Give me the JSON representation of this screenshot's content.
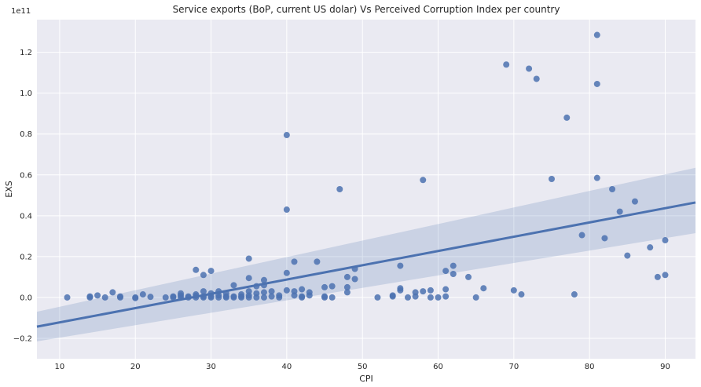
{
  "chart_data": {
    "type": "scatter",
    "title": "Service exports (BoP, current US dolar) Vs Perceived Corruption Index per country",
    "xlabel": "CPI",
    "ylabel": "EXS",
    "offset_label": "1e11",
    "xlim": [
      7,
      94
    ],
    "ylim": [
      -0.3,
      1.36
    ],
    "y_scale_factor": 100000000000,
    "x_ticks": [
      10,
      20,
      30,
      40,
      50,
      60,
      70,
      80,
      90
    ],
    "y_ticks": [
      -0.2,
      0.0,
      0.2,
      0.4,
      0.6,
      0.8,
      1.0,
      1.2
    ],
    "x_tick_labels": [
      "10",
      "20",
      "30",
      "40",
      "50",
      "60",
      "70",
      "80",
      "90"
    ],
    "y_tick_labels": [
      "−0.2",
      "0.0",
      "0.2",
      "0.4",
      "0.6",
      "0.8",
      "1.0",
      "1.2"
    ],
    "grid": true,
    "colors": {
      "background": "#eaeaf2",
      "grid": "#ffffff",
      "points": "#4c72b0",
      "band": "#4c72b0"
    },
    "regression": {
      "x": [
        7,
        94
      ],
      "y": [
        -0.143,
        0.465
      ],
      "ci_lower": [
        -0.215,
        0.315
      ],
      "ci_upper": [
        -0.07,
        0.635
      ]
    },
    "points": [
      [
        11,
        0.0
      ],
      [
        14,
        0.0
      ],
      [
        14,
        0.005
      ],
      [
        15,
        0.01
      ],
      [
        16,
        0.0
      ],
      [
        17,
        0.025
      ],
      [
        18,
        0.0
      ],
      [
        18,
        0.005
      ],
      [
        20,
        0.0
      ],
      [
        20,
        -0.003
      ],
      [
        21,
        0.015
      ],
      [
        22,
        0.003
      ],
      [
        24,
        0.0
      ],
      [
        25,
        0.005
      ],
      [
        25,
        0.0
      ],
      [
        26,
        0.01
      ],
      [
        26,
        0.0
      ],
      [
        26,
        0.02
      ],
      [
        27,
        0.0
      ],
      [
        27,
        0.005
      ],
      [
        28,
        0.0
      ],
      [
        28,
        0.008
      ],
      [
        28,
        0.015
      ],
      [
        28,
        0.135
      ],
      [
        29,
        0.11
      ],
      [
        29,
        0.03
      ],
      [
        29,
        0.0
      ],
      [
        29,
        0.005
      ],
      [
        30,
        0.13
      ],
      [
        30,
        0.02
      ],
      [
        30,
        0.0
      ],
      [
        30,
        0.005
      ],
      [
        31,
        0.03
      ],
      [
        31,
        0.0
      ],
      [
        31,
        0.01
      ],
      [
        32,
        0.0
      ],
      [
        32,
        0.02
      ],
      [
        32,
        0.005
      ],
      [
        33,
        0.06
      ],
      [
        33,
        0.005
      ],
      [
        33,
        0.0
      ],
      [
        34,
        0.0
      ],
      [
        34,
        0.015
      ],
      [
        34,
        0.005
      ],
      [
        35,
        0.19
      ],
      [
        35,
        0.095
      ],
      [
        35,
        0.0
      ],
      [
        35,
        0.01
      ],
      [
        35,
        0.03
      ],
      [
        36,
        0.055
      ],
      [
        36,
        0.0
      ],
      [
        36,
        0.02
      ],
      [
        37,
        0.085
      ],
      [
        37,
        0.06
      ],
      [
        37,
        0.0
      ],
      [
        37,
        0.025
      ],
      [
        38,
        0.03
      ],
      [
        38,
        0.005
      ],
      [
        39,
        0.0
      ],
      [
        39,
        0.01
      ],
      [
        40,
        0.795
      ],
      [
        40,
        0.43
      ],
      [
        40,
        0.12
      ],
      [
        40,
        0.035
      ],
      [
        41,
        0.175
      ],
      [
        41,
        0.03
      ],
      [
        41,
        0.01
      ],
      [
        42,
        0.04
      ],
      [
        42,
        0.0
      ],
      [
        42,
        0.005
      ],
      [
        43,
        0.025
      ],
      [
        43,
        0.01
      ],
      [
        44,
        0.175
      ],
      [
        45,
        0.05
      ],
      [
        45,
        0.005
      ],
      [
        45,
        0.0
      ],
      [
        46,
        0.055
      ],
      [
        46,
        0.0
      ],
      [
        47,
        0.53
      ],
      [
        48,
        0.1
      ],
      [
        48,
        0.05
      ],
      [
        48,
        0.025
      ],
      [
        49,
        0.14
      ],
      [
        49,
        0.09
      ],
      [
        52,
        0.0
      ],
      [
        54,
        0.005
      ],
      [
        54,
        0.01
      ],
      [
        55,
        0.155
      ],
      [
        55,
        0.045
      ],
      [
        55,
        0.035
      ],
      [
        56,
        0.0
      ],
      [
        57,
        0.025
      ],
      [
        57,
        0.005
      ],
      [
        58,
        0.575
      ],
      [
        58,
        0.03
      ],
      [
        59,
        0.0
      ],
      [
        59,
        0.035
      ],
      [
        60,
        0.0
      ],
      [
        61,
        0.13
      ],
      [
        61,
        0.04
      ],
      [
        61,
        0.005
      ],
      [
        62,
        0.155
      ],
      [
        62,
        0.115
      ],
      [
        64,
        0.1
      ],
      [
        65,
        0.0
      ],
      [
        66,
        0.045
      ],
      [
        69,
        1.14
      ],
      [
        70,
        0.035
      ],
      [
        71,
        0.015
      ],
      [
        72,
        1.12
      ],
      [
        73,
        1.07
      ],
      [
        75,
        0.58
      ],
      [
        77,
        0.88
      ],
      [
        78,
        0.015
      ],
      [
        79,
        0.305
      ],
      [
        81,
        1.285
      ],
      [
        81,
        1.045
      ],
      [
        81,
        0.585
      ],
      [
        82,
        0.29
      ],
      [
        83,
        0.53
      ],
      [
        84,
        0.42
      ],
      [
        85,
        0.205
      ],
      [
        86,
        0.47
      ],
      [
        88,
        0.245
      ],
      [
        89,
        0.1
      ],
      [
        90,
        0.28
      ],
      [
        90,
        0.11
      ]
    ]
  }
}
